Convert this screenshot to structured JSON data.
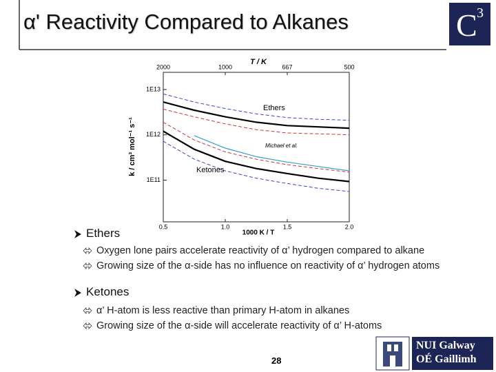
{
  "slide": {
    "title": "α' Reactivity Compared to Alkanes",
    "logo_letter": "C",
    "logo_sup": "3"
  },
  "chart_data": {
    "type": "line",
    "x": [
      0.5,
      0.75,
      1.0,
      1.25,
      1.5,
      1.75,
      2.0
    ],
    "series": [
      {
        "color": "#000000",
        "dashed": false,
        "values": [
          5300000000000.0,
          3500000000000.0,
          2500000000000.0,
          1900000000000.0,
          1600000000000.0,
          1500000000000.0,
          1400000000000.0
        ]
      },
      {
        "color": "#3344cc",
        "dashed": true,
        "values": [
          8000000000000.0,
          5300000000000.0,
          3800000000000.0,
          2900000000000.0,
          2400000000000.0,
          2200000000000.0,
          2100000000000.0
        ]
      },
      {
        "color": "#cc3333",
        "dashed": true,
        "values": [
          3700000000000.0,
          2500000000000.0,
          1750000000000.0,
          1300000000000.0,
          1100000000000.0,
          1050000000000.0,
          1000000000000.0
        ]
      },
      {
        "color": "#000000",
        "dashed": false,
        "values": [
          1200000000000.0,
          480000000000.0,
          260000000000.0,
          180000000000.0,
          140000000000.0,
          110000000000.0,
          93000000000.0
        ]
      },
      {
        "color": "#cc3333",
        "dashed": true,
        "values": [
          1900000000000.0,
          770000000000.0,
          420000000000.0,
          290000000000.0,
          220000000000.0,
          180000000000.0,
          150000000000.0
        ]
      },
      {
        "color": "#3344cc",
        "dashed": true,
        "values": [
          720000000000.0,
          290000000000.0,
          160000000000.0,
          110000000000.0,
          84000000000.0,
          66000000000.0,
          56000000000.0
        ]
      },
      {
        "color": "#33a0c8",
        "dashed": false,
        "values": [
          null,
          960000000000.0,
          510000000000.0,
          330000000000.0,
          250000000000.0,
          200000000000.0,
          160000000000.0
        ]
      }
    ],
    "xlim": [
      0.5,
      2.0
    ],
    "xticks": [
      0.5,
      {
        "value": 1.0,
        "label": "1.0"
      },
      1.5,
      {
        "value": 2.0,
        "label": "2.0"
      }
    ],
    "xlabel": "1000 K / T",
    "top_ticks": [
      {
        "value": 0.5,
        "label": "2000"
      },
      {
        "value": 1.0,
        "label": "1000"
      },
      {
        "value": 1.5,
        "label": "667"
      },
      {
        "value": 2.0,
        "label": "500"
      }
    ],
    "top_label": "T / K",
    "ylim": [
      12000000000.0,
      24000000000000.0
    ],
    "yticks": [
      {
        "value": 100000000000.0,
        "label": "1E11"
      },
      {
        "value": 1000000000000.0,
        "label": "1E12"
      },
      {
        "value": 10000000000000.0,
        "label": "1E13"
      }
    ],
    "ylabel": "k / cm³ mol⁻¹ s⁻¹",
    "log_y": true,
    "annotations": [
      "Ethers",
      "Michael et al.",
      "Ketones"
    ]
  },
  "sections": [
    {
      "heading": "Ethers",
      "points": [
        "Oxygen lone pairs accelerate reactivity of α’ hydrogen compared to alkane",
        "Growing size of the α-side has no influence on reactivity of α’ hydrogen atoms"
      ]
    },
    {
      "heading": "Ketones",
      "points": [
        "α’ H-atom is less reactive than primary H-atom in alkanes",
        "Growing size of the α-side will accelerate reactivity of α’ H-atoms"
      ]
    }
  ],
  "page_number": "28",
  "footer_logo": {
    "line1": "NUI Galway",
    "line2": "OÉ Gaillimh"
  }
}
